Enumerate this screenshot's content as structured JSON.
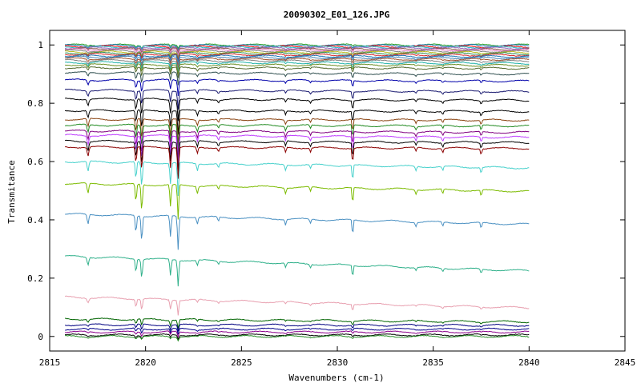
{
  "chart_data": {
    "type": "line",
    "title": "20090302_E01_126.JPG",
    "xlabel": "Wavenumbers (cm-1)",
    "ylabel": "Transmitance",
    "xlim": [
      2815,
      2845
    ],
    "ylim": [
      -0.05,
      1.05
    ],
    "x_range": [
      2815.8,
      2840.0
    ],
    "xticks": [
      2815,
      2820,
      2825,
      2830,
      2835,
      2840,
      2845
    ],
    "xtick_labels": [
      "2815",
      "2820",
      "2825",
      "2830",
      "2835",
      "2840",
      "2845"
    ],
    "yticks": [
      0,
      0.2,
      0.4,
      0.6,
      0.8,
      1
    ],
    "ytick_labels": [
      "0",
      "0.2",
      "0.4",
      "0.6",
      "0.8",
      "1"
    ],
    "grid": false,
    "legend": "none",
    "absorption_lines_cm1": [
      2817.0,
      2819.5,
      2819.8,
      2821.3,
      2821.7,
      2830.8
    ],
    "series_count": 40,
    "series": [
      {
        "baseline_start": 1.0,
        "baseline_end": 1.0,
        "color": "#2ca02c"
      },
      {
        "baseline_start": 0.998,
        "baseline_end": 0.998,
        "color": "#1f77b4"
      },
      {
        "baseline_start": 0.995,
        "baseline_end": 0.994,
        "color": "#ff0000"
      },
      {
        "baseline_start": 0.993,
        "baseline_end": 0.992,
        "color": "#17becf"
      },
      {
        "baseline_start": 0.99,
        "baseline_end": 0.989,
        "color": "#9467bd"
      },
      {
        "baseline_start": 0.987,
        "baseline_end": 0.985,
        "color": "#8c564b"
      },
      {
        "baseline_start": 0.984,
        "baseline_end": 0.982,
        "color": "#e377c2"
      },
      {
        "baseline_start": 0.98,
        "baseline_end": 0.978,
        "color": "#7f7f7f"
      },
      {
        "baseline_start": 0.976,
        "baseline_end": 0.974,
        "color": "#bcbd22"
      },
      {
        "baseline_start": 0.972,
        "baseline_end": 0.97,
        "color": "#2e8b57"
      },
      {
        "baseline_start": 0.968,
        "baseline_end": 0.965,
        "color": "#d62728"
      },
      {
        "baseline_start": 0.963,
        "baseline_end": 0.96,
        "color": "#1f77b4"
      },
      {
        "baseline_start": 0.958,
        "baseline_end": 0.955,
        "color": "#4682b4"
      },
      {
        "baseline_start": 0.953,
        "baseline_end": 0.95,
        "color": "#a0522d"
      },
      {
        "baseline_start": 0.947,
        "baseline_end": 0.944,
        "color": "#808080"
      },
      {
        "baseline_start": 0.94,
        "baseline_end": 0.937,
        "color": "#20b2aa"
      },
      {
        "baseline_start": 0.932,
        "baseline_end": 0.93,
        "color": "#6b8e23"
      },
      {
        "baseline_start": 0.922,
        "baseline_end": 0.92,
        "color": "#556b2f"
      },
      {
        "baseline_start": 0.905,
        "baseline_end": 0.9,
        "color": "#2f4f4f"
      },
      {
        "baseline_start": 0.88,
        "baseline_end": 0.876,
        "color": "#0000aa"
      },
      {
        "baseline_start": 0.845,
        "baseline_end": 0.84,
        "color": "#191970"
      },
      {
        "baseline_start": 0.815,
        "baseline_end": 0.81,
        "color": "#000000"
      },
      {
        "baseline_start": 0.775,
        "baseline_end": 0.772,
        "color": "#000000"
      },
      {
        "baseline_start": 0.745,
        "baseline_end": 0.742,
        "color": "#8b4513"
      },
      {
        "baseline_start": 0.725,
        "baseline_end": 0.722,
        "color": "#228b22"
      },
      {
        "baseline_start": 0.705,
        "baseline_end": 0.7,
        "color": "#800080"
      },
      {
        "baseline_start": 0.69,
        "baseline_end": 0.683,
        "color": "#bf3eff"
      },
      {
        "baseline_start": 0.67,
        "baseline_end": 0.665,
        "color": "#000000"
      },
      {
        "baseline_start": 0.65,
        "baseline_end": 0.645,
        "color": "#8b0000"
      },
      {
        "baseline_start": 0.6,
        "baseline_end": 0.578,
        "color": "#48d1cc"
      },
      {
        "baseline_start": 0.525,
        "baseline_end": 0.498,
        "color": "#7cbb00"
      },
      {
        "baseline_start": 0.42,
        "baseline_end": 0.385,
        "color": "#4a90c2"
      },
      {
        "baseline_start": 0.275,
        "baseline_end": 0.225,
        "color": "#2fb08a"
      },
      {
        "baseline_start": 0.135,
        "baseline_end": 0.098,
        "color": "#e8a0b0"
      },
      {
        "baseline_start": 0.06,
        "baseline_end": 0.05,
        "color": "#006400"
      },
      {
        "baseline_start": 0.04,
        "baseline_end": 0.038,
        "color": "#000080"
      },
      {
        "baseline_start": 0.025,
        "baseline_end": 0.025,
        "color": "#00008b"
      },
      {
        "baseline_start": 0.015,
        "baseline_end": 0.015,
        "color": "#8b008b"
      },
      {
        "baseline_start": 0.005,
        "baseline_end": 0.005,
        "color": "#000000"
      },
      {
        "baseline_start": 0.0,
        "baseline_end": 0.0,
        "color": "#228b22"
      }
    ]
  }
}
